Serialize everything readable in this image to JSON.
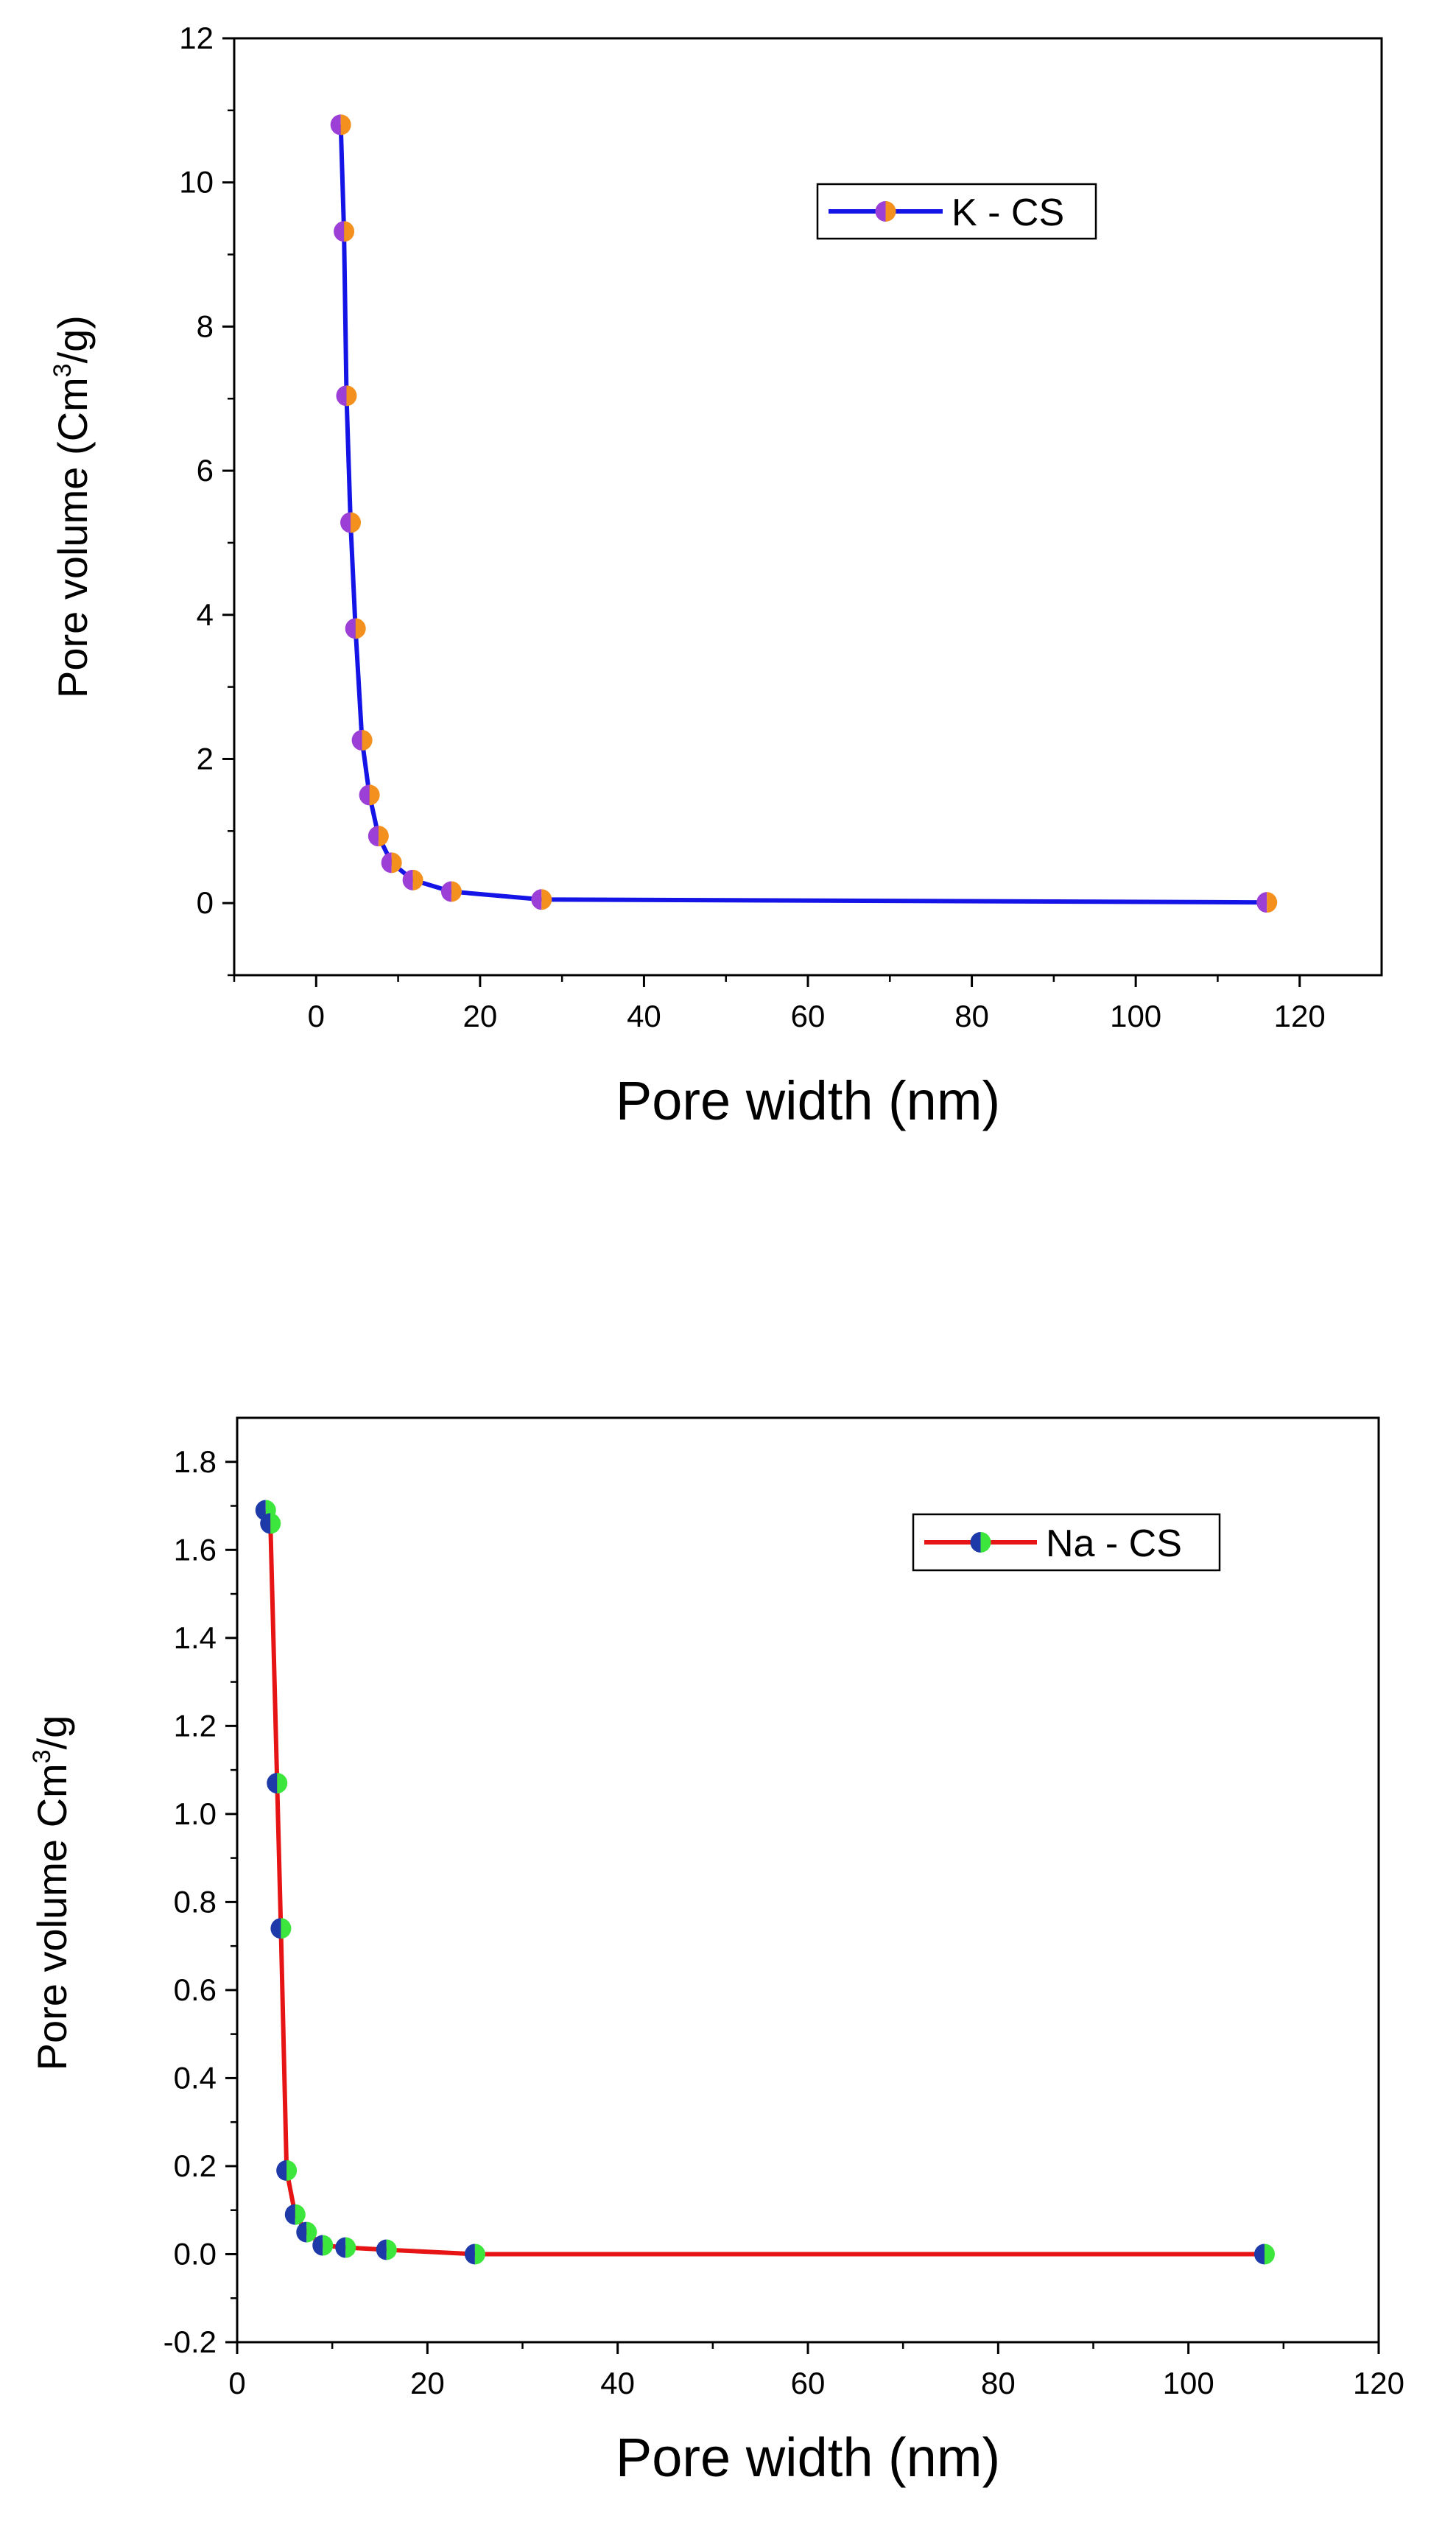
{
  "chart_data": [
    {
      "type": "line",
      "xlabel": "Pore width (nm)",
      "ylabel_parts": [
        "Pore volume (Cm",
        "3",
        "/g)"
      ],
      "xlim": [
        -10,
        130
      ],
      "ylim": [
        -1,
        12
      ],
      "xticks": [
        0,
        20,
        40,
        60,
        80,
        100,
        120
      ],
      "yticks": [
        0,
        2,
        4,
        6,
        8,
        10,
        12
      ],
      "xtick_labels": [
        "0",
        "20",
        "40",
        "60",
        "80",
        "100",
        "120"
      ],
      "ytick_labels": [
        "0",
        "2",
        "4",
        "6",
        "8",
        "10",
        "12"
      ],
      "legend_position": "top-right",
      "series": [
        {
          "name": "K - CS",
          "line_color": "#1414e6",
          "marker_left_color": "#9b3fd6",
          "marker_right_color": "#f4911e",
          "x": [
            3.0,
            3.4,
            3.7,
            4.2,
            4.8,
            5.6,
            6.5,
            7.6,
            9.2,
            11.8,
            16.5,
            27.5,
            116
          ],
          "y": [
            10.8,
            9.32,
            7.04,
            5.28,
            3.81,
            2.26,
            1.5,
            0.93,
            0.56,
            0.32,
            0.16,
            0.05,
            0.01
          ]
        }
      ]
    },
    {
      "type": "line",
      "xlabel": "Pore width (nm)",
      "ylabel_parts": [
        "Pore volume Cm",
        "3",
        "/g"
      ],
      "xlim": [
        0,
        120
      ],
      "ylim": [
        -0.2,
        1.9
      ],
      "xticks": [
        0,
        20,
        40,
        60,
        80,
        100,
        120
      ],
      "yticks": [
        -0.2,
        0.0,
        0.2,
        0.4,
        0.6,
        0.8,
        1.0,
        1.2,
        1.4,
        1.6,
        1.8
      ],
      "xtick_labels": [
        "0",
        "20",
        "40",
        "60",
        "80",
        "100",
        "120"
      ],
      "ytick_labels": [
        "-0.2",
        "0.0",
        "0.2",
        "0.4",
        "0.6",
        "0.8",
        "1.0",
        "1.2",
        "1.4",
        "1.6",
        "1.8"
      ],
      "legend_position": "top-right",
      "series": [
        {
          "name": "Na - CS",
          "line_color": "#e61414",
          "marker_left_color": "#1e3aa8",
          "marker_right_color": "#3ce63c",
          "x": [
            3.0,
            3.5,
            4.2,
            4.6,
            5.2,
            6.1,
            7.3,
            9.0,
            11.4,
            15.7,
            25.0,
            108
          ],
          "y": [
            1.69,
            1.66,
            1.07,
            0.74,
            0.19,
            0.09,
            0.05,
            0.02,
            0.015,
            0.01,
            0.0,
            0.0
          ]
        }
      ]
    }
  ]
}
